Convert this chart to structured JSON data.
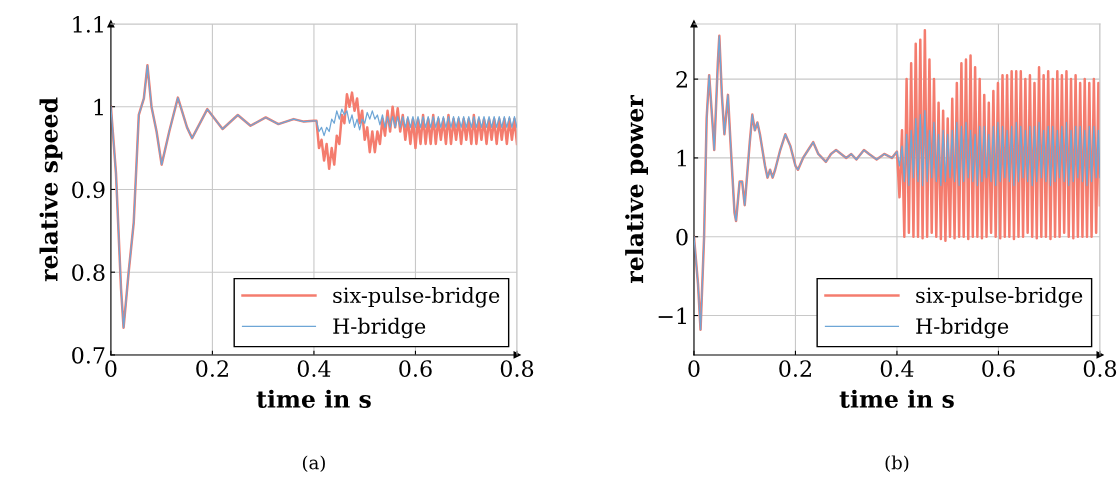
{
  "chart_data": [
    {
      "type": "line",
      "xlabel": "time in s",
      "ylabel": "relative speed",
      "annotations": [
        "(a)"
      ],
      "xlim": [
        0,
        0.8
      ],
      "ylim": [
        0.7,
        1.1
      ],
      "xticks": [
        0,
        0.2,
        0.4,
        0.6,
        0.8
      ],
      "yticks": [
        0.7,
        0.8,
        0.9,
        1,
        1.1
      ],
      "grid": true,
      "legend": "bottom right",
      "line_style": "solid",
      "marker": "none",
      "x": [
        0,
        0.01,
        0.02,
        0.025,
        0.035,
        0.045,
        0.055,
        0.065,
        0.072,
        0.08,
        0.09,
        0.1,
        0.115,
        0.132,
        0.15,
        0.16,
        0.19,
        0.22,
        0.25,
        0.275,
        0.305,
        0.33,
        0.36,
        0.38,
        0.4,
        0.405,
        0.41,
        0.415,
        0.42,
        0.425,
        0.43,
        0.435,
        0.44,
        0.445,
        0.45,
        0.455,
        0.46,
        0.465,
        0.47,
        0.475,
        0.48,
        0.485,
        0.49,
        0.495,
        0.5,
        0.505,
        0.51,
        0.515,
        0.52,
        0.525,
        0.53,
        0.535,
        0.54,
        0.545,
        0.55,
        0.555,
        0.56,
        0.565,
        0.57,
        0.575,
        0.58,
        0.585,
        0.59,
        0.595,
        0.6,
        0.605,
        0.61,
        0.615,
        0.62,
        0.625,
        0.63,
        0.635,
        0.64,
        0.645,
        0.65,
        0.655,
        0.66,
        0.665,
        0.67,
        0.675,
        0.68,
        0.685,
        0.69,
        0.695,
        0.7,
        0.705,
        0.71,
        0.715,
        0.72,
        0.725,
        0.73,
        0.735,
        0.74,
        0.745,
        0.75,
        0.755,
        0.76,
        0.765,
        0.77,
        0.775,
        0.78,
        0.785,
        0.79,
        0.795,
        0.8
      ],
      "series": [
        {
          "name": "six-pulse-bridge",
          "color": "#f47c6e",
          "values": [
            1.0,
            0.92,
            0.78,
            0.733,
            0.8,
            0.86,
            0.99,
            1.01,
            1.05,
            1.0,
            0.97,
            0.93,
            0.97,
            1.011,
            0.975,
            0.962,
            0.997,
            0.973,
            0.99,
            0.977,
            0.987,
            0.979,
            0.985,
            0.982,
            0.983,
            0.983,
            0.95,
            0.96,
            0.935,
            0.955,
            0.925,
            0.95,
            0.93,
            0.965,
            0.955,
            0.99,
            0.98,
            1.015,
            1.0,
            1.017,
            0.995,
            1.01,
            0.98,
            0.995,
            0.96,
            0.975,
            0.945,
            0.97,
            0.945,
            0.97,
            0.955,
            0.985,
            0.965,
            0.995,
            0.97,
            1.0,
            0.975,
            0.998,
            0.97,
            0.99,
            0.96,
            0.985,
            0.955,
            0.985,
            0.95,
            0.985,
            0.955,
            0.99,
            0.955,
            0.985,
            0.955,
            0.99,
            0.955,
            0.985,
            0.96,
            0.985,
            0.955,
            0.99,
            0.955,
            0.985,
            0.96,
            0.985,
            0.955,
            0.985,
            0.96,
            0.985,
            0.955,
            0.99,
            0.955,
            0.985,
            0.96,
            0.985,
            0.955,
            0.985,
            0.96,
            0.985,
            0.955,
            0.985,
            0.96,
            0.985,
            0.955,
            0.985,
            0.96,
            0.985,
            0.955
          ]
        },
        {
          "name": "H-bridge",
          "color": "#6ea6d6",
          "values": [
            1.0,
            0.92,
            0.78,
            0.733,
            0.8,
            0.86,
            0.99,
            1.01,
            1.05,
            1.0,
            0.97,
            0.93,
            0.97,
            1.011,
            0.975,
            0.962,
            0.997,
            0.973,
            0.99,
            0.977,
            0.987,
            0.979,
            0.985,
            0.982,
            0.983,
            0.983,
            0.97,
            0.975,
            0.965,
            0.975,
            0.97,
            0.985,
            0.98,
            0.995,
            0.985,
            0.997,
            0.99,
            0.995,
            0.98,
            0.99,
            0.975,
            0.985,
            0.972,
            0.985,
            0.98,
            0.993,
            0.985,
            0.995,
            0.985,
            0.99,
            0.978,
            0.99,
            0.975,
            0.988,
            0.975,
            0.988,
            0.975,
            0.988,
            0.975,
            0.988,
            0.975,
            0.988,
            0.975,
            0.988,
            0.975,
            0.988,
            0.975,
            0.988,
            0.975,
            0.988,
            0.975,
            0.988,
            0.975,
            0.988,
            0.975,
            0.988,
            0.975,
            0.988,
            0.975,
            0.988,
            0.975,
            0.988,
            0.975,
            0.988,
            0.975,
            0.988,
            0.975,
            0.988,
            0.975,
            0.988,
            0.975,
            0.988,
            0.975,
            0.988,
            0.975,
            0.988,
            0.975,
            0.988,
            0.975,
            0.988,
            0.975,
            0.988,
            0.975,
            0.988,
            0.975
          ]
        }
      ]
    },
    {
      "type": "line",
      "xlabel": "time in s",
      "ylabel": "relative power",
      "annotations": [
        "(b)"
      ],
      "xlim": [
        0,
        0.8
      ],
      "ylim": [
        -1.5,
        2.7
      ],
      "xticks": [
        0,
        0.2,
        0.4,
        0.6,
        0.8
      ],
      "yticks": [
        {
          "value": -1,
          "label": "−1"
        },
        0,
        1,
        2
      ],
      "grid": true,
      "legend": "bottom right",
      "line_style": "solid",
      "marker": "none",
      "x": [
        0,
        0.008,
        0.013,
        0.02,
        0.025,
        0.03,
        0.037,
        0.04,
        0.047,
        0.05,
        0.055,
        0.06,
        0.067,
        0.072,
        0.08,
        0.083,
        0.09,
        0.095,
        0.1,
        0.11,
        0.115,
        0.12,
        0.125,
        0.13,
        0.14,
        0.145,
        0.15,
        0.155,
        0.16,
        0.17,
        0.18,
        0.19,
        0.2,
        0.205,
        0.215,
        0.225,
        0.235,
        0.245,
        0.26,
        0.27,
        0.28,
        0.29,
        0.3,
        0.31,
        0.32,
        0.335,
        0.345,
        0.36,
        0.375,
        0.39,
        0.4,
        0.405,
        0.41,
        0.4145,
        0.419,
        0.4235,
        0.428,
        0.4325,
        0.437,
        0.4415,
        0.446,
        0.4505,
        0.455,
        0.4595,
        0.464,
        0.4685,
        0.473,
        0.4775,
        0.482,
        0.4865,
        0.491,
        0.4955,
        0.5,
        0.5045,
        0.509,
        0.5135,
        0.518,
        0.5225,
        0.527,
        0.5315,
        0.536,
        0.5405,
        0.545,
        0.5495,
        0.554,
        0.5585,
        0.563,
        0.5675,
        0.572,
        0.5765,
        0.581,
        0.5855,
        0.59,
        0.5945,
        0.599,
        0.6035,
        0.608,
        0.6125,
        0.617,
        0.6215,
        0.626,
        0.6305,
        0.635,
        0.6395,
        0.644,
        0.6485,
        0.653,
        0.6575,
        0.662,
        0.6665,
        0.671,
        0.6755,
        0.68,
        0.6845,
        0.689,
        0.6935,
        0.698,
        0.7025,
        0.707,
        0.7115,
        0.716,
        0.7205,
        0.725,
        0.7295,
        0.734,
        0.7385,
        0.743,
        0.7475,
        0.752,
        0.7565,
        0.761,
        0.7655,
        0.77,
        0.7745,
        0.779,
        0.7835,
        0.788,
        0.7925,
        0.797,
        0.8
      ],
      "series": [
        {
          "name": "six-pulse-bridge",
          "color": "#f47c6e",
          "values": [
            0,
            -0.6,
            -1.18,
            0,
            1.5,
            2.05,
            1.4,
            1.1,
            2.2,
            2.55,
            1.8,
            1.3,
            1.8,
            1.2,
            0.3,
            0.2,
            0.7,
            0.7,
            0.4,
            1.2,
            1.55,
            1.35,
            1.45,
            1.3,
            0.9,
            0.75,
            0.85,
            0.75,
            0.85,
            1.1,
            1.3,
            1.15,
            0.9,
            0.85,
            1.0,
            1.1,
            1.2,
            1.05,
            0.95,
            1.05,
            1.1,
            1.05,
            1.0,
            1.05,
            0.98,
            1.1,
            1.05,
            0.98,
            1.05,
            1.0,
            1.08,
            0.5,
            1.35,
            0.0,
            2.0,
            0.05,
            2.2,
            0.0,
            2.45,
            0.0,
            2.5,
            -0.02,
            2.62,
            0.0,
            2.25,
            0.05,
            2.0,
            0.0,
            1.7,
            -0.03,
            1.6,
            -0.05,
            1.5,
            0.0,
            1.75,
            -0.02,
            1.95,
            0.0,
            2.2,
            0.0,
            2.25,
            -0.03,
            2.3,
            0.0,
            2.15,
            0.0,
            2.0,
            -0.02,
            1.8,
            0.0,
            1.7,
            0.05,
            1.85,
            0.0,
            1.95,
            -0.02,
            2.05,
            0.0,
            2.05,
            0.0,
            2.1,
            -0.03,
            2.1,
            0.0,
            2.1,
            0.0,
            2.0,
            0.05,
            2.05,
            0.0,
            1.95,
            -0.02,
            2.15,
            0.0,
            2.05,
            0.0,
            2.1,
            -0.03,
            2.0,
            0.0,
            2.1,
            0.0,
            2.05,
            0.05,
            2.1,
            0.0,
            2.0,
            -0.02,
            2.05,
            0.0,
            1.95,
            0.0,
            2.0,
            0.0,
            1.95,
            0.0,
            2.0,
            0.05,
            1.95,
            0.4
          ]
        },
        {
          "name": "H-bridge",
          "color": "#6ea6d6",
          "values": [
            0,
            -0.6,
            -1.18,
            0,
            1.5,
            2.05,
            1.4,
            1.1,
            2.2,
            2.55,
            1.8,
            1.3,
            1.8,
            1.2,
            0.3,
            0.2,
            0.7,
            0.7,
            0.4,
            1.2,
            1.55,
            1.35,
            1.45,
            1.3,
            0.9,
            0.75,
            0.85,
            0.75,
            0.85,
            1.1,
            1.3,
            1.15,
            0.9,
            0.85,
            1.0,
            1.1,
            1.2,
            1.05,
            0.95,
            1.05,
            1.1,
            1.05,
            1.0,
            1.05,
            0.98,
            1.1,
            1.05,
            0.98,
            1.05,
            1.0,
            1.08,
            0.9,
            1.15,
            0.7,
            1.3,
            0.65,
            1.35,
            0.75,
            1.5,
            0.7,
            1.55,
            0.65,
            1.6,
            0.7,
            1.35,
            0.75,
            1.45,
            0.7,
            1.3,
            0.65,
            1.35,
            0.7,
            1.3,
            0.75,
            1.35,
            0.7,
            1.45,
            0.65,
            1.4,
            0.7,
            1.45,
            0.75,
            1.35,
            0.7,
            1.3,
            0.65,
            1.4,
            0.7,
            1.4,
            0.75,
            1.3,
            0.7,
            1.4,
            0.65,
            1.45,
            0.7,
            1.4,
            0.75,
            1.35,
            0.7,
            1.4,
            0.65,
            1.45,
            0.7,
            1.4,
            0.75,
            1.35,
            0.7,
            1.4,
            0.65,
            1.4,
            0.7,
            1.45,
            0.75,
            1.35,
            0.7,
            1.4,
            0.65,
            1.4,
            0.7,
            1.35,
            0.75,
            1.4,
            0.7,
            1.45,
            0.65,
            1.35,
            0.7,
            1.4,
            0.75,
            1.4,
            0.7,
            1.35,
            0.65,
            1.4,
            0.7,
            1.4,
            0.75,
            1.35,
            0.75
          ]
        }
      ]
    }
  ]
}
